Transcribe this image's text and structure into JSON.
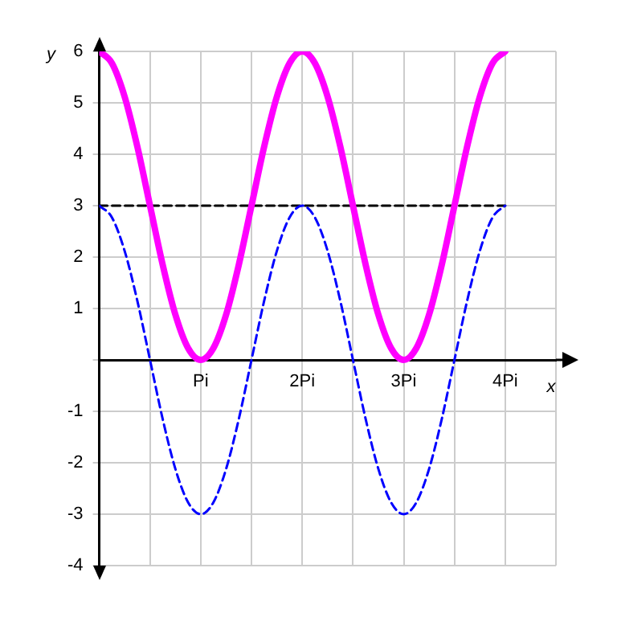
{
  "chart_data": {
    "type": "line",
    "xlabel": "x",
    "ylabel": "y",
    "xlim": [
      0,
      4.5
    ],
    "ylim": [
      -4,
      6
    ],
    "xticks": [
      {
        "value": 0,
        "label": null
      },
      {
        "value": 0.5,
        "label": null
      },
      {
        "value": 1,
        "label": "Pi"
      },
      {
        "value": 1.5,
        "label": null
      },
      {
        "value": 2,
        "label": "2Pi"
      },
      {
        "value": 2.5,
        "label": null
      },
      {
        "value": 3,
        "label": "3Pi"
      },
      {
        "value": 3.5,
        "label": null
      },
      {
        "value": 4,
        "label": "4Pi"
      },
      {
        "value": 4.5,
        "label": null
      }
    ],
    "yticks": [
      -4,
      -3,
      -2,
      -1,
      {
        "value": 0,
        "label": null
      },
      1,
      2,
      3,
      4,
      5,
      6
    ],
    "grid": true,
    "marker": "none",
    "x": [
      0,
      0.125,
      0.25,
      0.375,
      0.5,
      0.625,
      0.75,
      0.875,
      1,
      1.125,
      1.25,
      1.375,
      1.5,
      1.625,
      1.75,
      1.875,
      2,
      2.125,
      2.25,
      2.375,
      2.5,
      2.625,
      2.75,
      2.875,
      3,
      3.125,
      3.25,
      3.375,
      3.5,
      3.625,
      3.75,
      3.875,
      4
    ],
    "series": [
      {
        "color": "#ff00ff",
        "line_style": "solid",
        "values": [
          6,
          5.77,
          5.12,
          4.15,
          3,
          1.85,
          0.88,
          0.23,
          0,
          0.23,
          0.88,
          1.85,
          3,
          4.15,
          5.12,
          5.77,
          6,
          5.77,
          5.12,
          4.15,
          3,
          1.85,
          0.88,
          0.23,
          0,
          0.23,
          0.88,
          1.85,
          3,
          4.15,
          5.12,
          5.77,
          6
        ]
      },
      {
        "color": "#0000ff",
        "line_style": "dashed",
        "values": [
          3,
          2.77,
          2.12,
          1.15,
          0,
          -1.15,
          -2.12,
          -2.77,
          -3,
          -2.77,
          -2.12,
          -1.15,
          0,
          1.15,
          2.12,
          2.77,
          3,
          2.77,
          2.12,
          1.15,
          0,
          -1.15,
          -2.12,
          -2.77,
          -3,
          -2.77,
          -2.12,
          -1.15,
          0,
          1.15,
          2.12,
          2.77,
          3
        ]
      },
      {
        "color": "#000000",
        "line_style": "dashed",
        "x": [
          0,
          4
        ],
        "values": [
          3,
          3
        ]
      }
    ]
  }
}
